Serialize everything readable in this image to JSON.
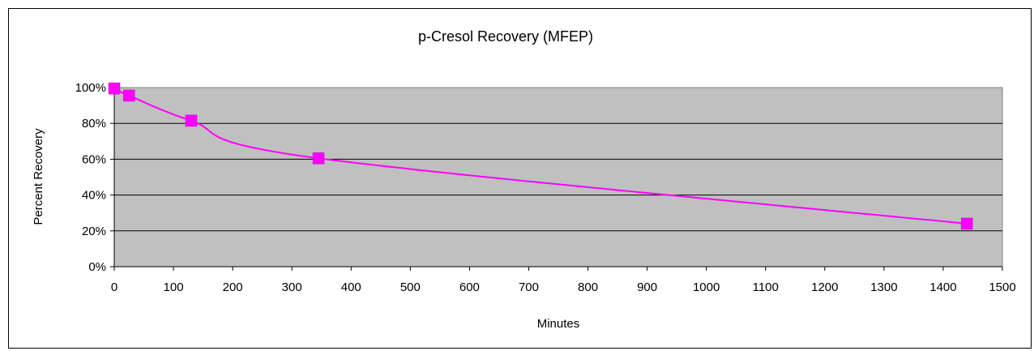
{
  "chart_data": {
    "type": "line",
    "title": "p-Cresol Recovery (MFEP)",
    "xlabel": "Minutes",
    "ylabel": "Percent Recovery",
    "xlim": [
      0,
      1500
    ],
    "ylim": [
      0,
      100
    ],
    "x_ticks": [
      "0",
      "100",
      "200",
      "300",
      "400",
      "500",
      "600",
      "700",
      "800",
      "900",
      "1000",
      "1100",
      "1200",
      "1300",
      "1400",
      "1500"
    ],
    "y_ticks": [
      "0%",
      "20%",
      "40%",
      "60%",
      "80%",
      "100%"
    ],
    "grid": "horizontal",
    "legend": "none",
    "plot_background": "#c0c0c0",
    "series": [
      {
        "color": "#ff00ff",
        "smooth": true,
        "marker": "square",
        "x": [
          0,
          25,
          130,
          345,
          1440
        ],
        "y": [
          99.5,
          95.5,
          81.5,
          60.5,
          24
        ]
      }
    ]
  }
}
